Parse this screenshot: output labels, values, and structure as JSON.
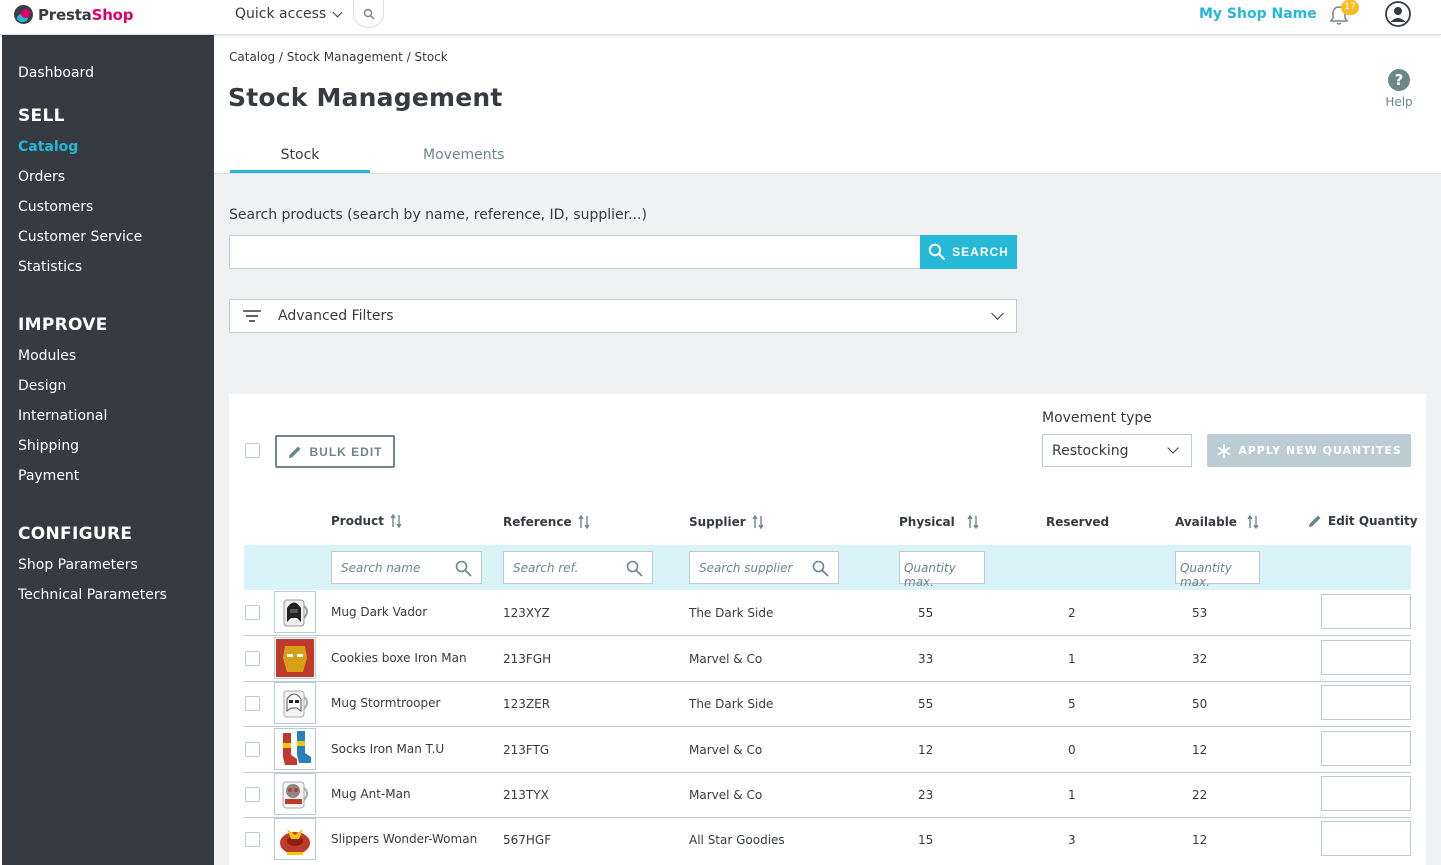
{
  "topbar": {
    "logo_name": "PrestaShop",
    "quick_access": "Quick access",
    "shop_name": "My Shop Name",
    "notification_count": "17"
  },
  "sidebar": {
    "dashboard": "Dashboard",
    "sell": "SELL",
    "sell_items": [
      "Catalog",
      "Orders",
      "Customers",
      "Customer Service",
      "Statistics"
    ],
    "improve": "IMPROVE",
    "improve_items": [
      "Modules",
      "Design",
      "International",
      "Shipping",
      "Payment"
    ],
    "configure": "CONFIGURE",
    "configure_items": [
      "Shop Parameters",
      "Technical Parameters"
    ],
    "active_item": "Catalog"
  },
  "header": {
    "breadcrumb": "Catalog / Stock Management / Stock",
    "title": "Stock Management",
    "help": "Help",
    "tabs": [
      "Stock",
      "Movements"
    ]
  },
  "search": {
    "label": "Search products (search by name, reference, ID, supplier...)",
    "value": "",
    "button": "SEARCH"
  },
  "advanced_filters": "Advanced Filters",
  "toolbar": {
    "bulk_edit": "BULK EDIT",
    "movement_type_label": "Movement type",
    "movement_type_value": "Restocking",
    "apply": "APPLY NEW QUANTITES"
  },
  "table": {
    "headers": {
      "product": "Product",
      "reference": "Reference",
      "supplier": "Supplier",
      "physical": "Physical",
      "reserved": "Reserved",
      "available": "Available",
      "edit_quantity": "Edit Quantity"
    },
    "filters": {
      "name": "Search name",
      "ref": "Search ref.",
      "supplier": "Search supplier",
      "physical": "Quantity max.",
      "available": "Quantity max."
    },
    "rows": [
      {
        "product": "Mug Dark Vador",
        "reference": "123XYZ",
        "supplier": "The Dark Side",
        "physical": "55",
        "reserved": "2",
        "available": "53",
        "image": "darth-vader-mug"
      },
      {
        "product": "Cookies boxe Iron Man",
        "reference": "213FGH",
        "supplier": "Marvel & Co",
        "physical": "33",
        "reserved": "1",
        "available": "32",
        "image": "iron-man-box"
      },
      {
        "product": "Mug Stormtrooper",
        "reference": "123ZER",
        "supplier": "The Dark Side",
        "physical": "55",
        "reserved": "5",
        "available": "50",
        "image": "stormtrooper-mug"
      },
      {
        "product": "Socks Iron Man T.U",
        "reference": "213FTG",
        "supplier": "Marvel & Co",
        "physical": "12",
        "reserved": "0",
        "available": "12",
        "image": "iron-man-socks"
      },
      {
        "product": "Mug Ant-Man",
        "reference": "213TYX",
        "supplier": "Marvel & Co",
        "physical": "23",
        "reserved": "1",
        "available": "22",
        "image": "ant-man-mug"
      },
      {
        "product": "Slippers Wonder-Woman",
        "reference": "567HGF",
        "supplier": "All Star Goodies",
        "physical": "15",
        "reserved": "3",
        "available": "12",
        "image": "wonder-woman-slippers"
      }
    ]
  },
  "colors": {
    "accent": "#25b9d7",
    "sidebar": "#363a41",
    "brand": "#df0067",
    "badge": "#fbbb22"
  }
}
